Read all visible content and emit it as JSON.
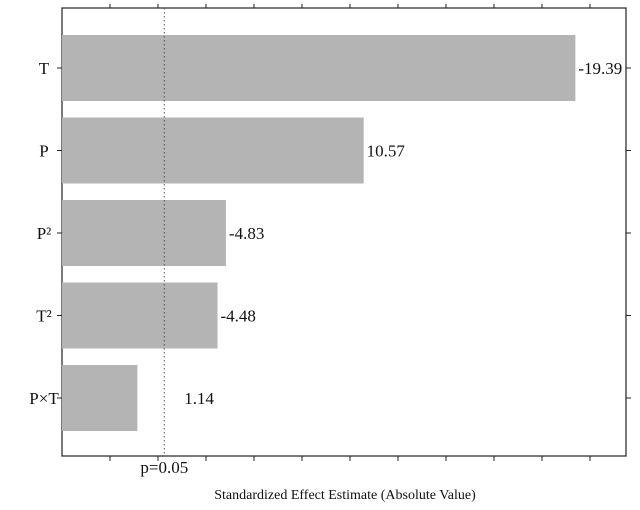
{
  "chart_data": {
    "type": "bar",
    "orientation": "horizontal",
    "categories": [
      "T",
      "P",
      "P²",
      "T²",
      "P×T"
    ],
    "values": [
      19.39,
      10.57,
      4.83,
      4.48,
      1.14
    ],
    "value_labels": [
      "-19.39",
      "10.57",
      "-4.83",
      "-4.48",
      "1.14"
    ],
    "xlabel": "Standardized Effect Estimate (Absolute Value)",
    "ylabel": "",
    "xlim": [
      -2,
      21.5
    ],
    "reference_line": {
      "value": 2.262,
      "label": "p=0.05"
    },
    "grid": false,
    "bar_color": "#b4b4b4"
  }
}
